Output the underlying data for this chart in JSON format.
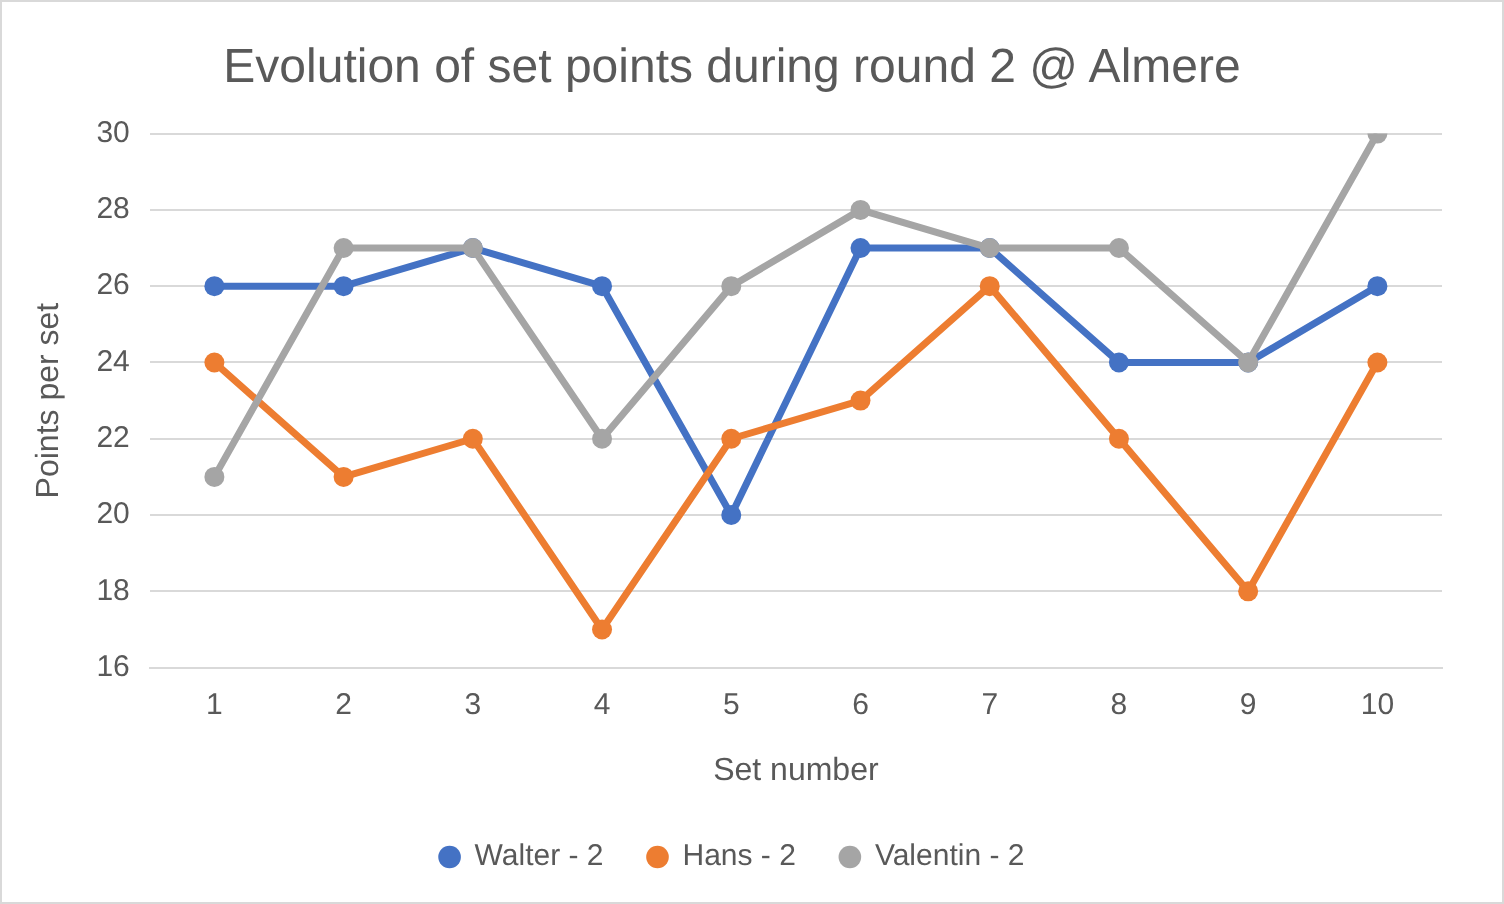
{
  "chart_data": {
    "type": "line",
    "title": "Evolution of set points during round 2 @ Almere",
    "xlabel": "Set number",
    "ylabel": "Points per set",
    "categories": [
      "1",
      "2",
      "3",
      "4",
      "5",
      "6",
      "7",
      "8",
      "9",
      "10"
    ],
    "series": [
      {
        "name": "Walter - 2",
        "color": "#4472c4",
        "values": [
          26,
          26,
          27,
          26,
          20,
          27,
          27,
          24,
          24,
          26
        ]
      },
      {
        "name": "Hans - 2",
        "color": "#ed7d31",
        "values": [
          24,
          21,
          22,
          17,
          22,
          23,
          26,
          22,
          18,
          24
        ]
      },
      {
        "name": "Valentin - 2",
        "color": "#a5a5a5",
        "values": [
          21,
          27,
          27,
          22,
          26,
          28,
          27,
          27,
          24,
          30
        ]
      }
    ],
    "ylim": [
      16,
      30
    ],
    "yticks": [
      16,
      18,
      20,
      22,
      24,
      26,
      28,
      30
    ],
    "grid": "y",
    "legend": "bottom",
    "marker": "circle",
    "line_style": "solid"
  }
}
